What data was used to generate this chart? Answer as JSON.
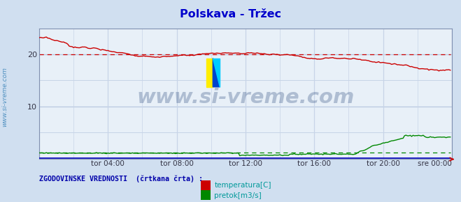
{
  "title": "Polskava - Tržec",
  "title_color": "#0000cc",
  "bg_color": "#d0dff0",
  "plot_bg_color": "#e8f0f8",
  "grid_color_h": "#b8c8e0",
  "grid_color_v": "#c8d4e8",
  "xlim": [
    0,
    288
  ],
  "ylim": [
    0,
    25
  ],
  "yticks": [
    10,
    20
  ],
  "xtick_labels": [
    "tor 04:00",
    "tor 08:00",
    "tor 12:00",
    "tor 16:00",
    "tor 20:00",
    "sre 00:00"
  ],
  "xtick_positions": [
    48,
    96,
    144,
    192,
    240,
    276
  ],
  "watermark_text": "www.si-vreme.com",
  "watermark_color": "#1a3a70",
  "watermark_alpha": 0.28,
  "watermark_fontsize": 21,
  "ylabel_text": "www.si-vreme.com",
  "ylabel_color": "#5090c0",
  "legend_label_temp": "temperatura[C]",
  "legend_label_pretok": "pretok[m3/s]",
  "legend_text": "ZGODOVINSKE VREDNOSTI  (črtkana črta) :",
  "legend_color": "#0000aa",
  "temp_color": "#cc0000",
  "pretok_color": "#008800",
  "visina_color": "#0000bb",
  "arrow_color": "#cc0000",
  "spine_color": "#8090b0",
  "tick_color": "#333344"
}
